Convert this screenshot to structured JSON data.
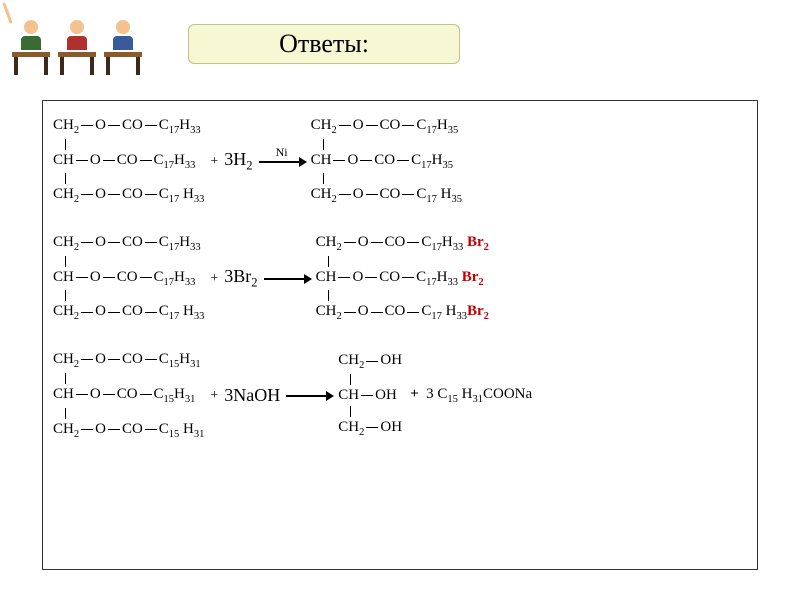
{
  "title": "Ответы:",
  "arrow": {
    "catalyst_r1": "Ni"
  },
  "frag": {
    "CH2": "CH",
    "CH": "CH",
    "O": "O",
    "CO": "CO",
    "OH": "OH",
    "C17H33": "C",
    "C17H35": "C",
    "C15H31": "C",
    "plus": "+"
  },
  "sub": {
    "two": "2",
    "1733": "17",
    "33": "33",
    "1735": "17",
    "35": "35",
    "1531": "15",
    "31": "31"
  },
  "reagent": {
    "h2": "3H",
    "br2": "3Br",
    "naoh": "3NaOH",
    "br_suffix": "Br",
    "product3": "3 C",
    "coona": "COONa"
  },
  "colors": {
    "br": "#c00000",
    "border": "#333333",
    "title_bg": "#f6f7d3"
  },
  "students": [
    {
      "head": "#f4c28e",
      "body": "#3a6b35"
    },
    {
      "head": "#f4c28e",
      "body": "#b03030"
    },
    {
      "head": "#f4c28e",
      "body": "#3a5b9b"
    }
  ]
}
